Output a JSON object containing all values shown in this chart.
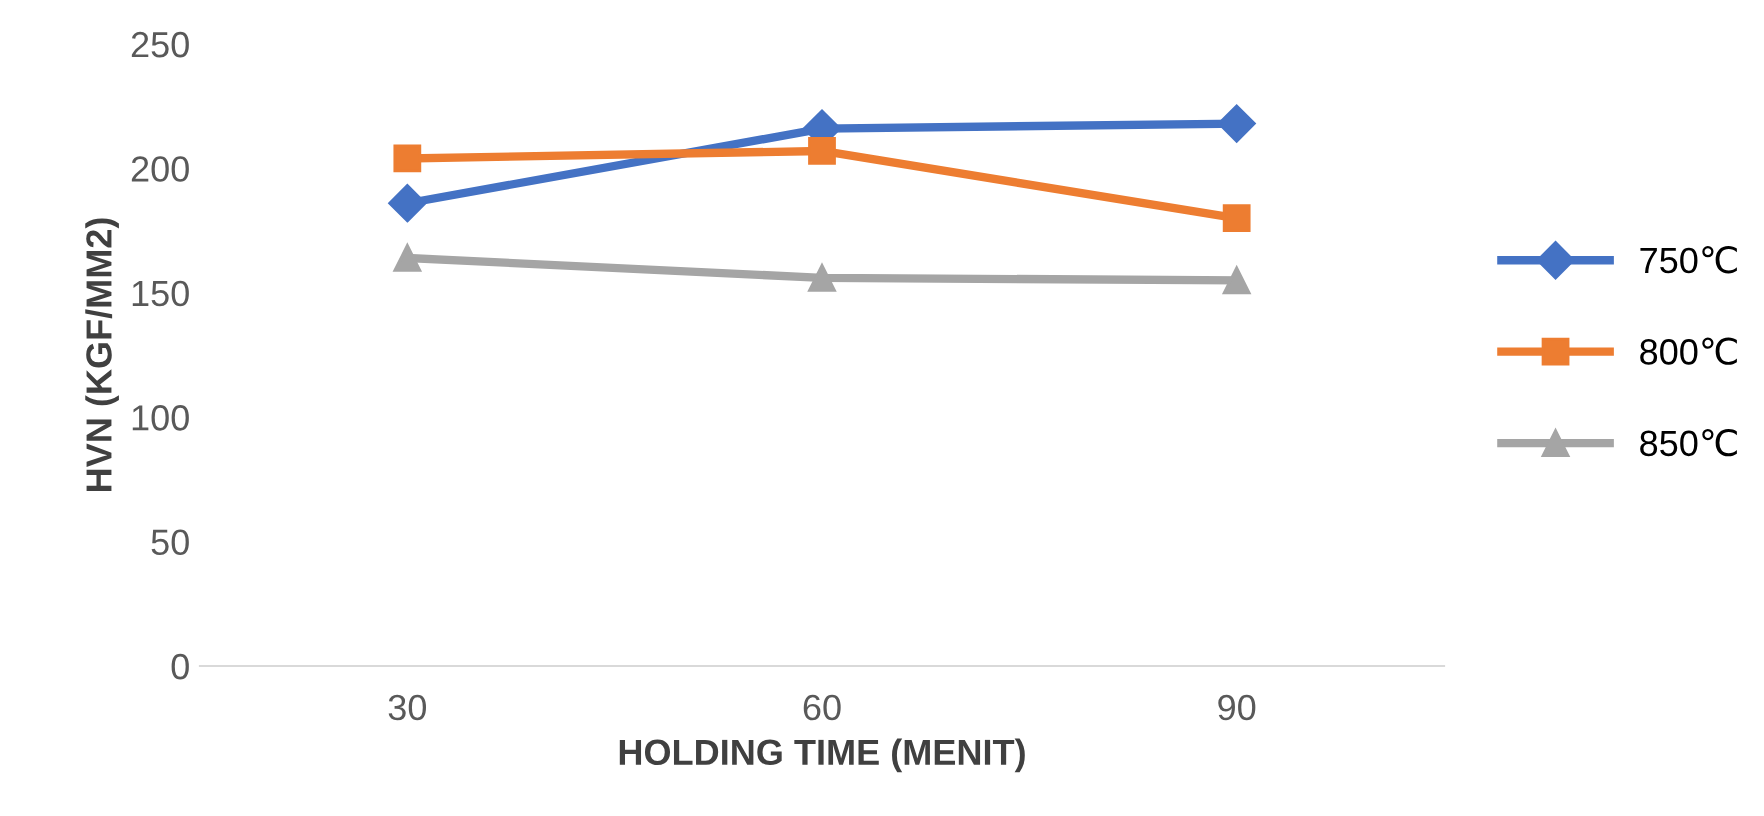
{
  "chart_data": {
    "type": "line",
    "xlabel": "HOLDING TIME (MENIT)",
    "ylabel": "HVN (KGF/MM2)",
    "categories": [
      "30",
      "60",
      "90"
    ],
    "ylim": [
      0,
      250
    ],
    "yticks": [
      0,
      50,
      100,
      150,
      200,
      250
    ],
    "grid": false,
    "legend": "right",
    "series": [
      {
        "name": "750℃",
        "color": "#4472c4",
        "marker": "diamond",
        "values": [
          186,
          216,
          218
        ]
      },
      {
        "name": "800℃",
        "color": "#ed7d31",
        "marker": "square",
        "values": [
          204,
          207,
          180
        ]
      },
      {
        "name": "850℃",
        "color": "#a5a5a5",
        "marker": "triangle",
        "values": [
          164,
          156,
          155
        ]
      }
    ]
  }
}
